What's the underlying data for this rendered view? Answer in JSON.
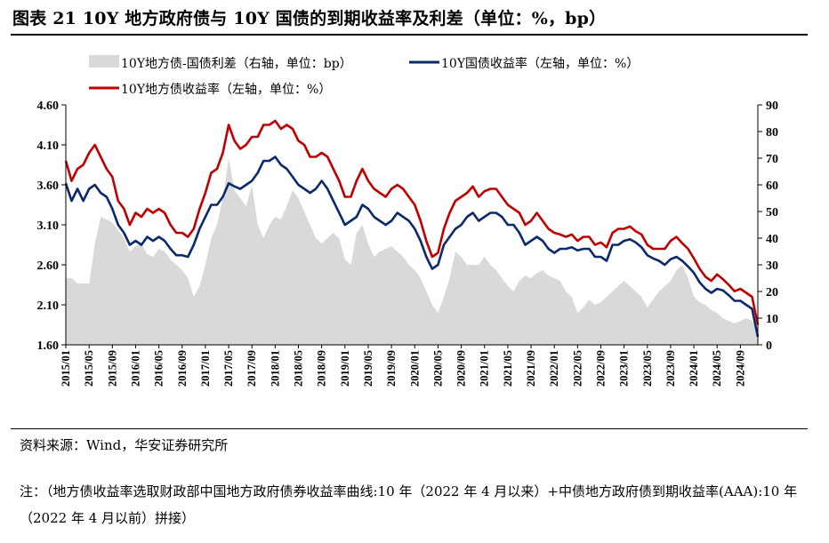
{
  "figure": {
    "title": "图表 21 10Y 地方政府债与 10Y 国债的到期收益率及利差（单位：%，bp）",
    "source": "资料来源：Wind，华安证券研究所",
    "note": "注：（地方债收益率选取财政部中国地方政府债券收益率曲线:10 年（2022 年 4 月以来）+中债地方政府债到期收益率(AAA):10 年（2022 年 4 月以前）拼接）"
  },
  "colors": {
    "spread_fill": "#d9d9d9",
    "gov_line": "#0b2a6b",
    "local_line": "#c00000"
  },
  "chart_data": {
    "type": "line",
    "legend_position": "top",
    "x_ticks": [
      "2015/01",
      "2015/05",
      "2015/09",
      "2016/01",
      "2016/05",
      "2016/09",
      "2017/01",
      "2017/05",
      "2017/09",
      "2018/01",
      "2018/05",
      "2018/09",
      "2019/01",
      "2019/05",
      "2019/09",
      "2020/01",
      "2020/05",
      "2020/09",
      "2021/01",
      "2021/05",
      "2021/09",
      "2022/01",
      "2022/05",
      "2022/09",
      "2023/01",
      "2023/05",
      "2023/09",
      "2024/01",
      "2024/05",
      "2024/09"
    ],
    "y_left": {
      "min": 1.6,
      "max": 4.6,
      "ticks": [
        "4.60",
        "4.10",
        "3.60",
        "3.10",
        "2.60",
        "2.10",
        "1.60"
      ]
    },
    "y_right": {
      "min": 0,
      "max": 90,
      "ticks": [
        "90",
        "80",
        "70",
        "60",
        "50",
        "40",
        "30",
        "20",
        "10",
        "0"
      ]
    },
    "series": [
      {
        "name": "10Y地方债-国债利差（右轴，单位：bp）",
        "kind": "area",
        "axis": "right",
        "x": [
          "2015/01",
          "2015/02",
          "2015/03",
          "2015/04",
          "2015/05",
          "2015/06",
          "2015/07",
          "2015/08",
          "2015/09",
          "2015/10",
          "2015/11",
          "2015/12",
          "2016/01",
          "2016/02",
          "2016/03",
          "2016/04",
          "2016/05",
          "2016/06",
          "2016/07",
          "2016/08",
          "2016/09",
          "2016/10",
          "2016/11",
          "2016/12",
          "2017/01",
          "2017/02",
          "2017/03",
          "2017/04",
          "2017/05",
          "2017/06",
          "2017/07",
          "2017/08",
          "2017/09",
          "2017/10",
          "2017/11",
          "2017/12",
          "2018/01",
          "2018/02",
          "2018/03",
          "2018/04",
          "2018/05",
          "2018/06",
          "2018/07",
          "2018/08",
          "2018/09",
          "2018/10",
          "2018/11",
          "2018/12",
          "2019/01",
          "2019/02",
          "2019/03",
          "2019/04",
          "2019/05",
          "2019/06",
          "2019/07",
          "2019/08",
          "2019/09",
          "2019/10",
          "2019/11",
          "2019/12",
          "2020/01",
          "2020/02",
          "2020/03",
          "2020/04",
          "2020/05",
          "2020/06",
          "2020/07",
          "2020/08",
          "2020/09",
          "2020/10",
          "2020/11",
          "2020/12",
          "2021/01",
          "2021/02",
          "2021/03",
          "2021/04",
          "2021/05",
          "2021/06",
          "2021/07",
          "2021/08",
          "2021/09",
          "2021/10",
          "2021/11",
          "2021/12",
          "2022/01",
          "2022/02",
          "2022/03",
          "2022/04",
          "2022/05",
          "2022/06",
          "2022/07",
          "2022/08",
          "2022/09",
          "2022/10",
          "2022/11",
          "2022/12",
          "2023/01",
          "2023/02",
          "2023/03",
          "2023/04",
          "2023/05",
          "2023/06",
          "2023/07",
          "2023/08",
          "2023/09",
          "2023/10",
          "2023/11",
          "2023/12",
          "2024/01",
          "2024/02",
          "2024/03",
          "2024/04",
          "2024/05",
          "2024/06",
          "2024/07",
          "2024/08",
          "2024/09",
          "2024/10",
          "2024/11",
          "2024/12"
        ],
        "values": [
          25,
          25,
          23,
          23,
          23,
          38,
          48,
          47,
          46,
          43,
          40,
          35,
          37,
          38,
          34,
          33,
          36,
          35,
          32,
          30,
          28,
          25,
          18,
          22,
          30,
          40,
          45,
          55,
          70,
          58,
          55,
          52,
          60,
          45,
          40,
          45,
          48,
          47,
          52,
          58,
          55,
          50,
          45,
          40,
          38,
          40,
          42,
          40,
          32,
          30,
          42,
          45,
          38,
          33,
          35,
          36,
          37,
          35,
          33,
          30,
          28,
          25,
          20,
          15,
          12,
          18,
          25,
          35,
          33,
          30,
          30,
          30,
          33,
          30,
          28,
          25,
          22,
          20,
          24,
          26,
          25,
          27,
          28,
          26,
          25,
          24,
          20,
          18,
          12,
          14,
          17,
          15,
          16,
          18,
          20,
          22,
          24,
          22,
          20,
          18,
          14,
          17,
          20,
          22,
          24,
          28,
          30,
          25,
          18,
          16,
          15,
          13,
          12,
          10,
          9,
          8,
          9,
          10,
          9,
          6
        ]
      },
      {
        "name": "10Y国债收益率（左轴，单位：%）",
        "kind": "line",
        "axis": "left",
        "x": [
          "2015/01",
          "2015/02",
          "2015/03",
          "2015/04",
          "2015/05",
          "2015/06",
          "2015/07",
          "2015/08",
          "2015/09",
          "2015/10",
          "2015/11",
          "2015/12",
          "2016/01",
          "2016/02",
          "2016/03",
          "2016/04",
          "2016/05",
          "2016/06",
          "2016/07",
          "2016/08",
          "2016/09",
          "2016/10",
          "2016/11",
          "2016/12",
          "2017/01",
          "2017/02",
          "2017/03",
          "2017/04",
          "2017/05",
          "2017/06",
          "2017/07",
          "2017/08",
          "2017/09",
          "2017/10",
          "2017/11",
          "2017/12",
          "2018/01",
          "2018/02",
          "2018/03",
          "2018/04",
          "2018/05",
          "2018/06",
          "2018/07",
          "2018/08",
          "2018/09",
          "2018/10",
          "2018/11",
          "2018/12",
          "2019/01",
          "2019/02",
          "2019/03",
          "2019/04",
          "2019/05",
          "2019/06",
          "2019/07",
          "2019/08",
          "2019/09",
          "2019/10",
          "2019/11",
          "2019/12",
          "2020/01",
          "2020/02",
          "2020/03",
          "2020/04",
          "2020/05",
          "2020/06",
          "2020/07",
          "2020/08",
          "2020/09",
          "2020/10",
          "2020/11",
          "2020/12",
          "2021/01",
          "2021/02",
          "2021/03",
          "2021/04",
          "2021/05",
          "2021/06",
          "2021/07",
          "2021/08",
          "2021/09",
          "2021/10",
          "2021/11",
          "2021/12",
          "2022/01",
          "2022/02",
          "2022/03",
          "2022/04",
          "2022/05",
          "2022/06",
          "2022/07",
          "2022/08",
          "2022/09",
          "2022/10",
          "2022/11",
          "2022/12",
          "2023/01",
          "2023/02",
          "2023/03",
          "2023/04",
          "2023/05",
          "2023/06",
          "2023/07",
          "2023/08",
          "2023/09",
          "2023/10",
          "2023/11",
          "2023/12",
          "2024/01",
          "2024/02",
          "2024/03",
          "2024/04",
          "2024/05",
          "2024/06",
          "2024/07",
          "2024/08",
          "2024/09",
          "2024/10",
          "2024/11",
          "2024/12"
        ],
        "values": [
          3.62,
          3.4,
          3.55,
          3.4,
          3.55,
          3.6,
          3.5,
          3.45,
          3.3,
          3.1,
          3.0,
          2.85,
          2.9,
          2.85,
          2.95,
          2.9,
          2.95,
          2.9,
          2.8,
          2.72,
          2.72,
          2.7,
          2.85,
          3.05,
          3.2,
          3.35,
          3.35,
          3.45,
          3.62,
          3.58,
          3.55,
          3.6,
          3.65,
          3.75,
          3.9,
          3.9,
          3.95,
          3.85,
          3.8,
          3.7,
          3.6,
          3.55,
          3.5,
          3.55,
          3.65,
          3.55,
          3.4,
          3.25,
          3.1,
          3.15,
          3.2,
          3.35,
          3.3,
          3.2,
          3.15,
          3.1,
          3.15,
          3.25,
          3.2,
          3.15,
          3.05,
          2.9,
          2.7,
          2.55,
          2.6,
          2.85,
          2.95,
          3.05,
          3.1,
          3.2,
          3.25,
          3.15,
          3.2,
          3.25,
          3.25,
          3.2,
          3.1,
          3.1,
          3.0,
          2.85,
          2.9,
          2.95,
          2.9,
          2.8,
          2.75,
          2.8,
          2.8,
          2.82,
          2.78,
          2.8,
          2.8,
          2.7,
          2.7,
          2.65,
          2.85,
          2.85,
          2.9,
          2.92,
          2.88,
          2.82,
          2.72,
          2.68,
          2.65,
          2.6,
          2.67,
          2.7,
          2.65,
          2.58,
          2.5,
          2.38,
          2.3,
          2.25,
          2.3,
          2.28,
          2.22,
          2.15,
          2.15,
          2.1,
          2.05,
          1.7
        ]
      },
      {
        "name": "10Y地方债收益率（左轴，单位：%）",
        "kind": "line",
        "axis": "left",
        "x": [
          "2015/01",
          "2015/02",
          "2015/03",
          "2015/04",
          "2015/05",
          "2015/06",
          "2015/07",
          "2015/08",
          "2015/09",
          "2015/10",
          "2015/11",
          "2015/12",
          "2016/01",
          "2016/02",
          "2016/03",
          "2016/04",
          "2016/05",
          "2016/06",
          "2016/07",
          "2016/08",
          "2016/09",
          "2016/10",
          "2016/11",
          "2016/12",
          "2017/01",
          "2017/02",
          "2017/03",
          "2017/04",
          "2017/05",
          "2017/06",
          "2017/07",
          "2017/08",
          "2017/09",
          "2017/10",
          "2017/11",
          "2017/12",
          "2018/01",
          "2018/02",
          "2018/03",
          "2018/04",
          "2018/05",
          "2018/06",
          "2018/07",
          "2018/08",
          "2018/09",
          "2018/10",
          "2018/11",
          "2018/12",
          "2019/01",
          "2019/02",
          "2019/03",
          "2019/04",
          "2019/05",
          "2019/06",
          "2019/07",
          "2019/08",
          "2019/09",
          "2019/10",
          "2019/11",
          "2019/12",
          "2020/01",
          "2020/02",
          "2020/03",
          "2020/04",
          "2020/05",
          "2020/06",
          "2020/07",
          "2020/08",
          "2020/09",
          "2020/10",
          "2020/11",
          "2020/12",
          "2021/01",
          "2021/02",
          "2021/03",
          "2021/04",
          "2021/05",
          "2021/06",
          "2021/07",
          "2021/08",
          "2021/09",
          "2021/10",
          "2021/11",
          "2021/12",
          "2022/01",
          "2022/02",
          "2022/03",
          "2022/04",
          "2022/05",
          "2022/06",
          "2022/07",
          "2022/08",
          "2022/09",
          "2022/10",
          "2022/11",
          "2022/12",
          "2023/01",
          "2023/02",
          "2023/03",
          "2023/04",
          "2023/05",
          "2023/06",
          "2023/07",
          "2023/08",
          "2023/09",
          "2023/10",
          "2023/11",
          "2023/12",
          "2024/01",
          "2024/02",
          "2024/03",
          "2024/04",
          "2024/05",
          "2024/06",
          "2024/07",
          "2024/08",
          "2024/09",
          "2024/10",
          "2024/11",
          "2024/12"
        ],
        "values": [
          3.9,
          3.65,
          3.8,
          3.85,
          4.0,
          4.1,
          3.95,
          3.8,
          3.7,
          3.4,
          3.3,
          3.1,
          3.25,
          3.2,
          3.3,
          3.25,
          3.3,
          3.25,
          3.1,
          3.0,
          3.0,
          2.95,
          3.05,
          3.3,
          3.5,
          3.75,
          3.8,
          4.0,
          4.35,
          4.15,
          4.05,
          4.1,
          4.2,
          4.2,
          4.35,
          4.35,
          4.4,
          4.3,
          4.35,
          4.3,
          4.15,
          4.1,
          3.95,
          3.95,
          4.0,
          3.95,
          3.8,
          3.65,
          3.45,
          3.45,
          3.65,
          3.8,
          3.65,
          3.55,
          3.5,
          3.45,
          3.55,
          3.6,
          3.55,
          3.45,
          3.35,
          3.15,
          2.9,
          2.7,
          2.75,
          3.05,
          3.25,
          3.4,
          3.45,
          3.5,
          3.58,
          3.45,
          3.52,
          3.55,
          3.55,
          3.45,
          3.35,
          3.3,
          3.25,
          3.1,
          3.15,
          3.25,
          3.15,
          3.05,
          3.0,
          2.98,
          2.95,
          2.98,
          2.9,
          2.95,
          2.95,
          2.85,
          2.88,
          2.82,
          3.0,
          3.05,
          3.05,
          3.08,
          3.02,
          2.98,
          2.85,
          2.8,
          2.8,
          2.8,
          2.9,
          2.95,
          2.87,
          2.8,
          2.68,
          2.55,
          2.45,
          2.4,
          2.48,
          2.42,
          2.35,
          2.27,
          2.3,
          2.25,
          2.2,
          1.85
        ]
      }
    ]
  }
}
